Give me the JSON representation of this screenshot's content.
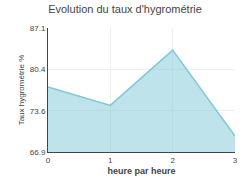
{
  "chart_data": {
    "type": "area",
    "title": "Evolution du taux d'hygrométrie",
    "xlabel": "heure par heure",
    "ylabel": "Taux hygrométrie %",
    "x": [
      0,
      1,
      2,
      3
    ],
    "values": [
      77.5,
      74.5,
      83.5,
      69.5
    ],
    "color": "#7ec8d8",
    "xlim": [
      0,
      3
    ],
    "ylim": [
      66.9,
      87.1
    ],
    "xticks": [
      0,
      1,
      2,
      3
    ],
    "yticks": [
      66.9,
      73.6,
      80.4,
      87.1
    ],
    "grid": true
  }
}
